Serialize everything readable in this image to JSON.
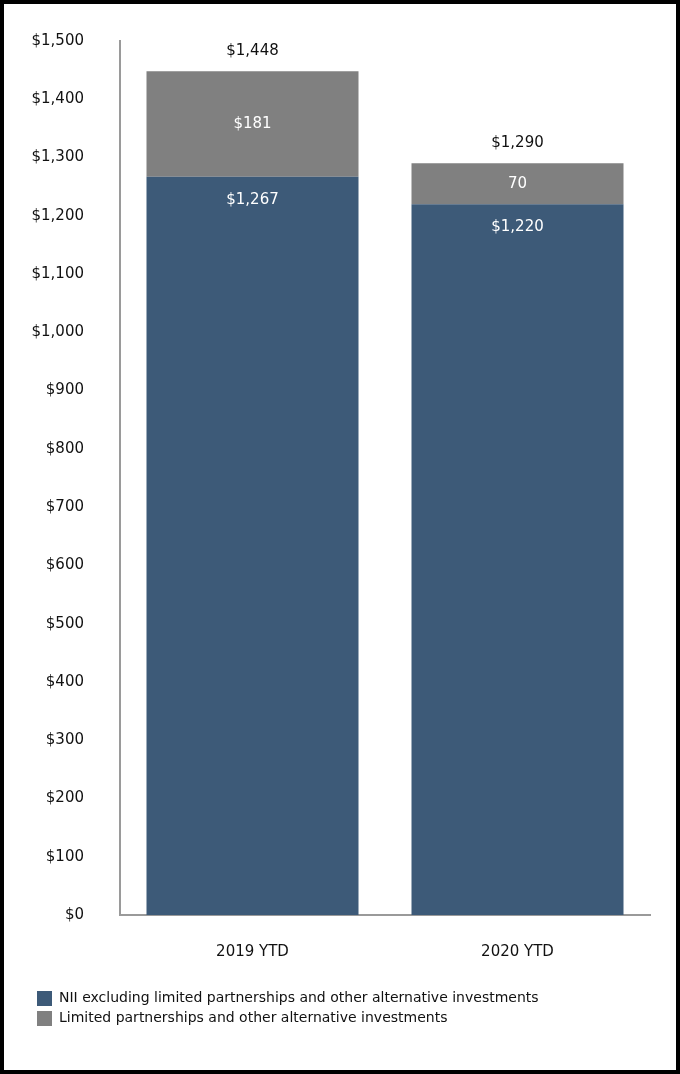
{
  "chart_data": {
    "type": "bar",
    "stacked": true,
    "categories": [
      "2019 YTD",
      "2020 YTD"
    ],
    "series": [
      {
        "name": "NII excluding limited partnerships and other alternative investments",
        "color": "#3d5a78",
        "values": [
          1267,
          1220
        ],
        "value_labels": [
          "$1,267",
          "$1,220"
        ]
      },
      {
        "name": "Limited partnerships and other alternative investments",
        "color": "#808080",
        "values": [
          181,
          70
        ],
        "value_labels": [
          "$181",
          "70"
        ]
      }
    ],
    "totals": [
      "$1,448",
      "$1,290"
    ],
    "ylim": [
      0,
      1500
    ],
    "yticks": [
      {
        "value": 0,
        "label": "$0"
      },
      {
        "value": 100,
        "label": "$100"
      },
      {
        "value": 200,
        "label": "$200"
      },
      {
        "value": 300,
        "label": "$300"
      },
      {
        "value": 400,
        "label": "$400"
      },
      {
        "value": 500,
        "label": "$500"
      },
      {
        "value": 600,
        "label": "$600"
      },
      {
        "value": 700,
        "label": "$700"
      },
      {
        "value": 800,
        "label": "$800"
      },
      {
        "value": 900,
        "label": "$900"
      },
      {
        "value": 1000,
        "label": "$1,000"
      },
      {
        "value": 1100,
        "label": "$1,100"
      },
      {
        "value": 1200,
        "label": "$1,200"
      },
      {
        "value": 1300,
        "label": "$1,300"
      },
      {
        "value": 1400,
        "label": "$1,400"
      },
      {
        "value": 1500,
        "label": "$1,500"
      }
    ],
    "grid": false,
    "legend": "bottom"
  }
}
